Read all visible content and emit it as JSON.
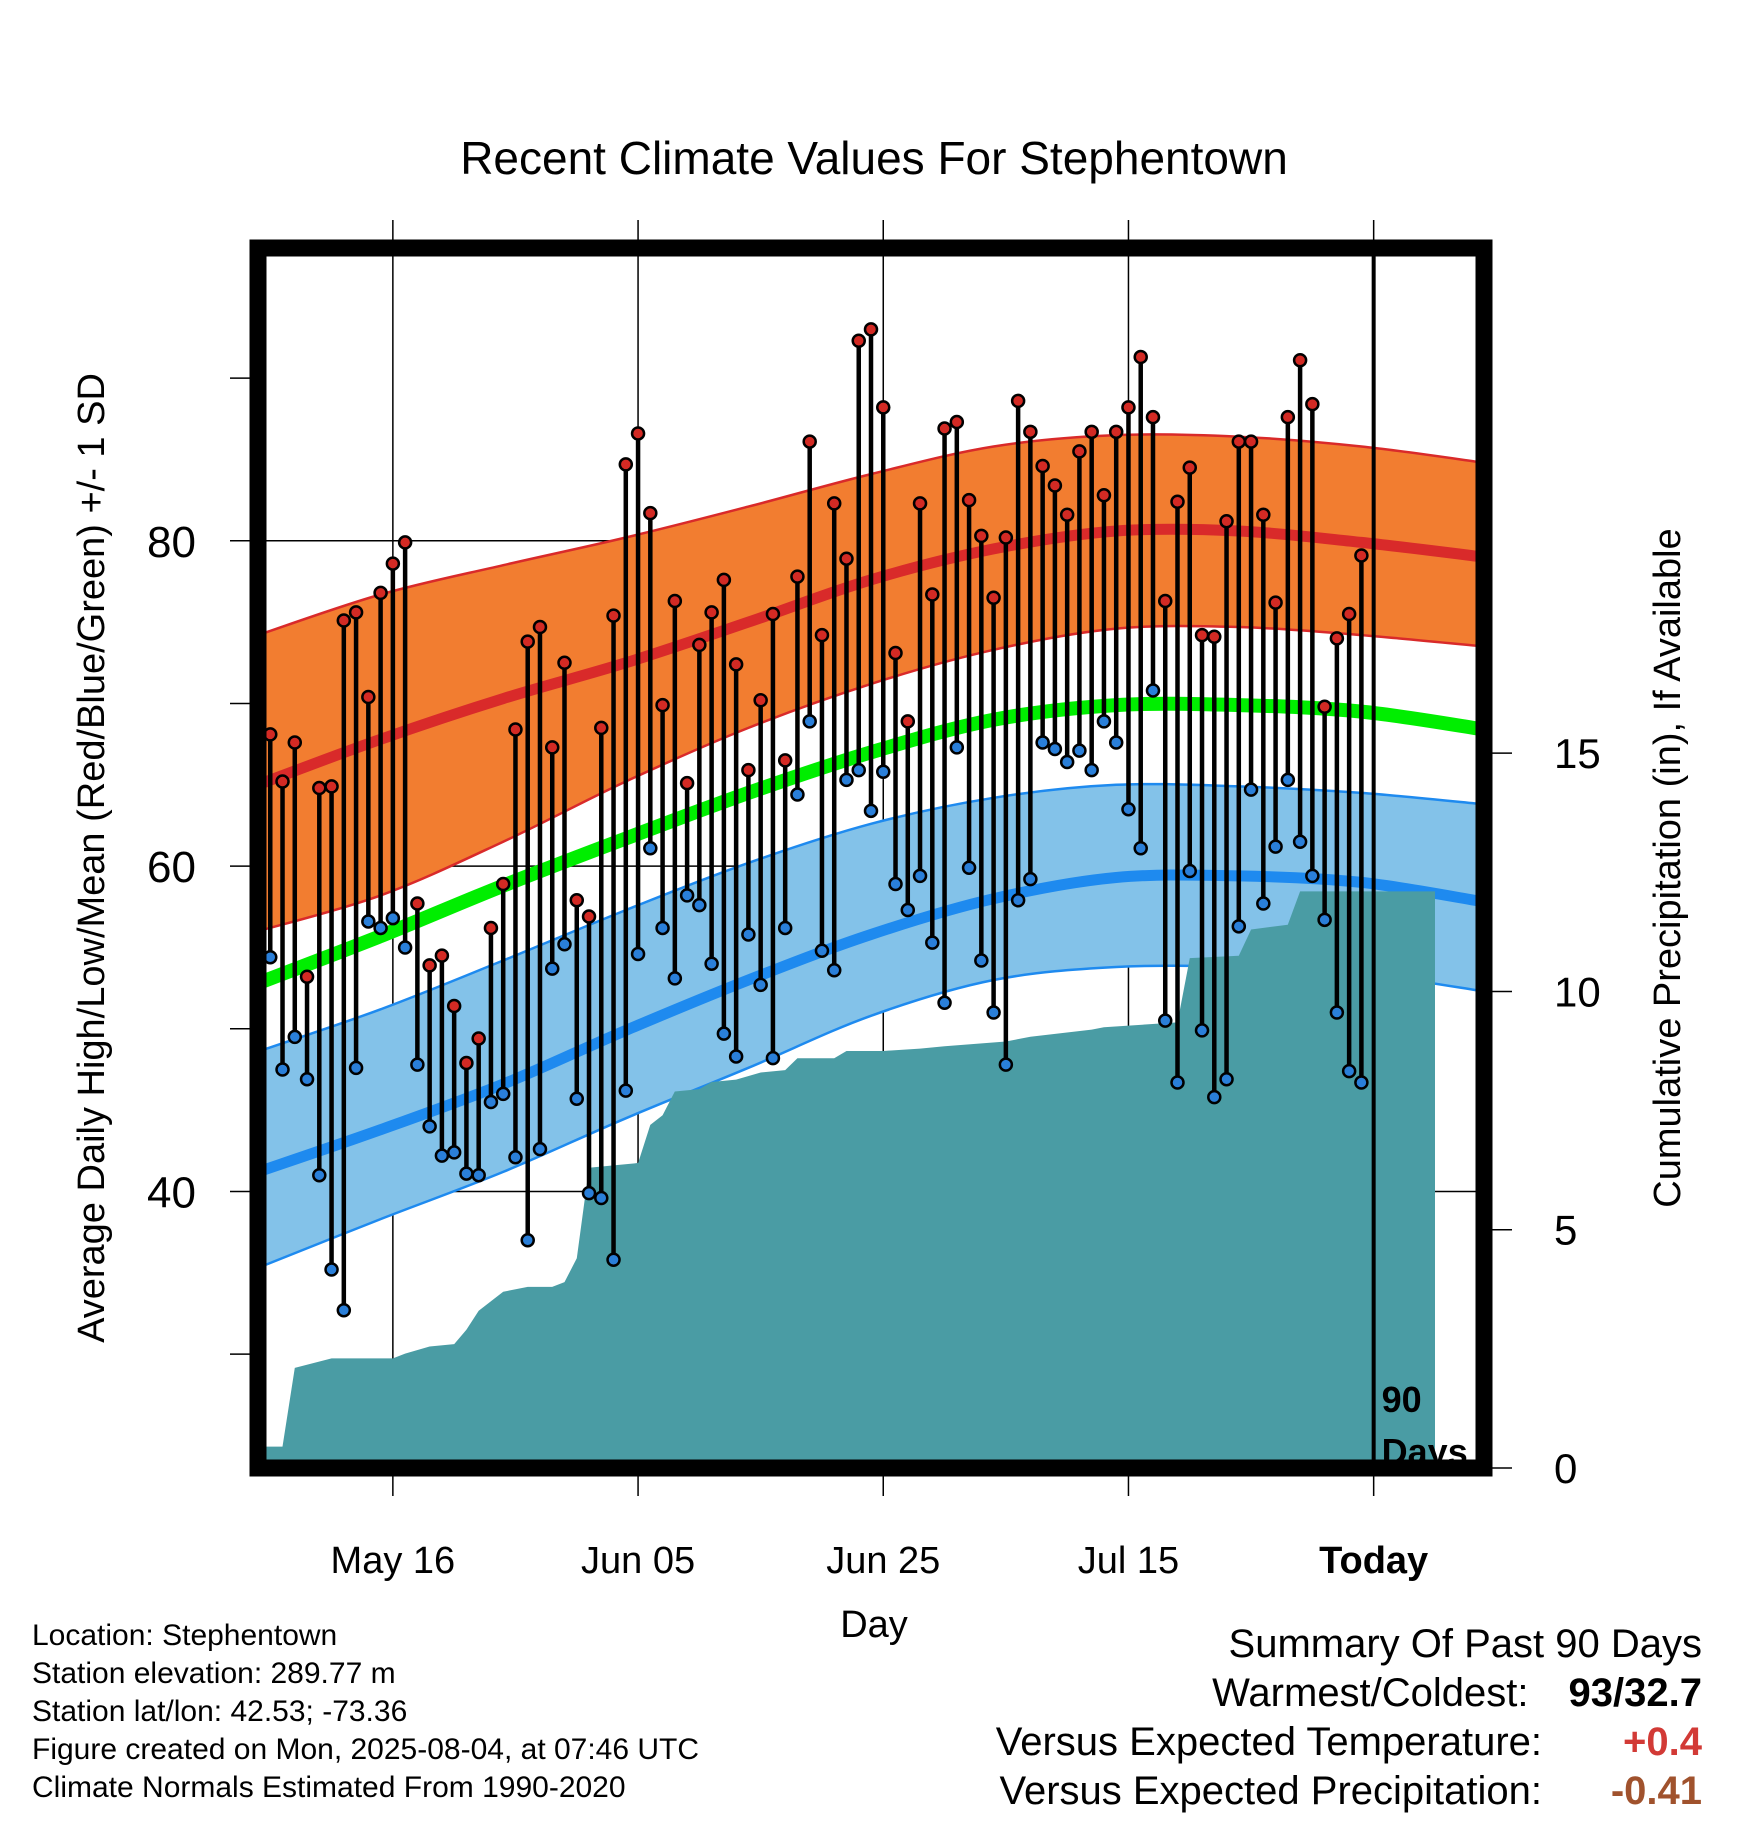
{
  "chart_data": {
    "type": "line",
    "title": "Recent Climate Values For Stephentown",
    "xlabel": "Day",
    "ylabel_left": "Average Daily High/Low/Mean (Red/Blue/Green) +/- 1 SD",
    "ylabel_right": "Cumulative Precipitation (in), If Available",
    "x_tick_labels": [
      "May 16",
      "Jun 05",
      "Jun 25",
      "Jul 15",
      "Today"
    ],
    "x_tick_days": [
      10,
      30,
      50,
      70,
      90
    ],
    "y_left_ticks": [
      40,
      60,
      80
    ],
    "y_left_minor_ticks": [
      30,
      50,
      70,
      90
    ],
    "y_left_range": [
      23,
      98
    ],
    "y_right_ticks": [
      0,
      5,
      10,
      15
    ],
    "y_right_range": [
      0,
      25.6
    ],
    "x_range": [
      -1,
      99
    ],
    "grid": true,
    "today_marker": "90\nDays",
    "normals": {
      "high_mean": [
        [
          -1,
          65.0
        ],
        [
          9,
          67.8
        ],
        [
          19,
          70.3
        ],
        [
          29,
          72.5
        ],
        [
          39,
          75.0
        ],
        [
          49,
          77.6
        ],
        [
          59,
          79.5
        ],
        [
          69,
          80.6
        ],
        [
          79,
          80.6
        ],
        [
          89,
          79.9
        ],
        [
          99,
          79.0
        ]
      ],
      "high_upper": [
        [
          -1,
          74.2
        ],
        [
          9,
          76.7
        ],
        [
          19,
          78.5
        ],
        [
          29,
          80.2
        ],
        [
          39,
          82.1
        ],
        [
          49,
          84.1
        ],
        [
          59,
          85.8
        ],
        [
          69,
          86.5
        ],
        [
          79,
          86.4
        ],
        [
          89,
          85.8
        ],
        [
          99,
          84.8
        ]
      ],
      "high_lower": [
        [
          -1,
          56.0
        ],
        [
          9,
          58.2
        ],
        [
          19,
          61.5
        ],
        [
          29,
          65.2
        ],
        [
          39,
          68.5
        ],
        [
          49,
          71.2
        ],
        [
          59,
          73.3
        ],
        [
          69,
          74.6
        ],
        [
          79,
          74.7
        ],
        [
          89,
          74.2
        ],
        [
          99,
          73.5
        ]
      ],
      "mean": [
        [
          -1,
          52.8
        ],
        [
          9,
          55.7
        ],
        [
          19,
          58.8
        ],
        [
          29,
          61.7
        ],
        [
          39,
          64.5
        ],
        [
          49,
          67.0
        ],
        [
          59,
          69.0
        ],
        [
          69,
          69.9
        ],
        [
          79,
          69.9
        ],
        [
          89,
          69.5
        ],
        [
          99,
          68.4
        ]
      ],
      "low_mean": [
        [
          -1,
          41.2
        ],
        [
          9,
          43.8
        ],
        [
          19,
          46.6
        ],
        [
          29,
          49.9
        ],
        [
          39,
          53.0
        ],
        [
          49,
          55.8
        ],
        [
          59,
          58.0
        ],
        [
          69,
          59.3
        ],
        [
          79,
          59.4
        ],
        [
          89,
          59.0
        ],
        [
          99,
          57.8
        ]
      ],
      "low_upper": [
        [
          -1,
          48.6
        ],
        [
          9,
          51.2
        ],
        [
          19,
          54.2
        ],
        [
          29,
          57.3
        ],
        [
          39,
          60.2
        ],
        [
          49,
          62.6
        ],
        [
          59,
          64.2
        ],
        [
          69,
          65.0
        ],
        [
          79,
          64.9
        ],
        [
          89,
          64.5
        ],
        [
          99,
          63.8
        ]
      ],
      "low_lower": [
        [
          -1,
          35.3
        ],
        [
          9,
          38.3
        ],
        [
          19,
          41.2
        ],
        [
          29,
          44.5
        ],
        [
          39,
          47.6
        ],
        [
          49,
          50.8
        ],
        [
          59,
          53.0
        ],
        [
          69,
          53.8
        ],
        [
          79,
          53.8
        ],
        [
          89,
          53.4
        ],
        [
          99,
          52.3
        ]
      ]
    },
    "daily": [
      [
        68.1,
        54.4
      ],
      [
        65.2,
        47.5
      ],
      [
        67.6,
        49.5
      ],
      [
        53.2,
        46.9
      ],
      [
        64.8,
        41.0
      ],
      [
        64.9,
        35.2
      ],
      [
        75.1,
        32.7
      ],
      [
        75.6,
        47.6
      ],
      [
        70.4,
        56.6
      ],
      [
        76.8,
        56.2
      ],
      [
        78.6,
        56.8
      ],
      [
        79.9,
        55.0
      ],
      [
        57.7,
        47.8
      ],
      [
        53.9,
        44.0
      ],
      [
        54.5,
        42.2
      ],
      [
        51.4,
        42.4
      ],
      [
        47.9,
        41.1
      ],
      [
        49.4,
        41.0
      ],
      [
        56.2,
        45.5
      ],
      [
        58.9,
        46.0
      ],
      [
        68.4,
        42.1
      ],
      [
        73.8,
        37.0
      ],
      [
        74.7,
        42.6
      ],
      [
        67.3,
        53.7
      ],
      [
        72.5,
        55.2
      ],
      [
        57.9,
        45.7
      ],
      [
        56.9,
        39.9
      ],
      [
        68.5,
        39.6
      ],
      [
        75.4,
        35.8
      ],
      [
        84.7,
        46.2
      ],
      [
        86.6,
        54.6
      ],
      [
        81.7,
        61.1
      ],
      [
        69.9,
        56.2
      ],
      [
        76.3,
        53.1
      ],
      [
        65.1,
        58.2
      ],
      [
        73.6,
        57.6
      ],
      [
        75.6,
        54.0
      ],
      [
        77.6,
        49.7
      ],
      [
        72.4,
        48.3
      ],
      [
        65.9,
        55.8
      ],
      [
        70.2,
        52.7
      ],
      [
        75.5,
        48.2
      ],
      [
        66.5,
        56.2
      ],
      [
        77.8,
        64.4
      ],
      [
        86.1,
        68.9
      ],
      [
        74.2,
        54.8
      ],
      [
        82.3,
        53.6
      ],
      [
        78.9,
        65.3
      ],
      [
        92.3,
        65.9
      ],
      [
        93.0,
        63.4
      ],
      [
        88.2,
        65.8
      ],
      [
        73.1,
        58.9
      ],
      [
        68.9,
        57.3
      ],
      [
        82.3,
        59.4
      ],
      [
        76.7,
        55.3
      ],
      [
        86.9,
        51.6
      ],
      [
        87.3,
        67.3
      ],
      [
        82.5,
        59.9
      ],
      [
        80.3,
        54.2
      ],
      [
        76.5,
        51.0
      ],
      [
        80.2,
        47.8
      ],
      [
        88.6,
        57.9
      ],
      [
        86.7,
        59.2
      ],
      [
        84.6,
        67.6
      ],
      [
        83.4,
        67.2
      ],
      [
        81.6,
        66.4
      ],
      [
        85.5,
        67.1
      ],
      [
        86.7,
        65.9
      ],
      [
        82.8,
        68.9
      ],
      [
        86.7,
        67.6
      ],
      [
        88.2,
        63.5
      ],
      [
        91.3,
        61.1
      ],
      [
        87.6,
        70.8
      ],
      [
        76.3,
        50.5
      ],
      [
        82.4,
        46.7
      ],
      [
        84.5,
        59.7
      ],
      [
        74.2,
        49.9
      ],
      [
        74.1,
        45.8
      ],
      [
        81.2,
        46.9
      ],
      [
        86.1,
        56.3
      ],
      [
        86.1,
        64.7
      ],
      [
        81.6,
        57.7
      ],
      [
        76.2,
        61.2
      ],
      [
        87.6,
        65.3
      ],
      [
        91.1,
        61.5
      ],
      [
        88.4,
        59.4
      ],
      [
        69.8,
        56.7
      ],
      [
        74.0,
        51.0
      ],
      [
        75.5,
        47.4
      ],
      [
        79.1,
        46.7
      ]
    ],
    "precip_cumulative": [
      [
        -1,
        0.45
      ],
      [
        1,
        0.45
      ],
      [
        2,
        2.1
      ],
      [
        5,
        2.3
      ],
      [
        10,
        2.3
      ],
      [
        11,
        2.4
      ],
      [
        13,
        2.55
      ],
      [
        15,
        2.6
      ],
      [
        16,
        2.9
      ],
      [
        17,
        3.3
      ],
      [
        19,
        3.7
      ],
      [
        21,
        3.8
      ],
      [
        23,
        3.8
      ],
      [
        24,
        3.9
      ],
      [
        25,
        4.4
      ],
      [
        26,
        6.3
      ],
      [
        28,
        6.35
      ],
      [
        30,
        6.4
      ],
      [
        31,
        7.2
      ],
      [
        32,
        7.4
      ],
      [
        33,
        7.9
      ],
      [
        35,
        7.95
      ],
      [
        36,
        8.1
      ],
      [
        38,
        8.15
      ],
      [
        40,
        8.3
      ],
      [
        42,
        8.35
      ],
      [
        43,
        8.6
      ],
      [
        46,
        8.6
      ],
      [
        47,
        8.75
      ],
      [
        50,
        8.75
      ],
      [
        53,
        8.8
      ],
      [
        55,
        8.85
      ],
      [
        60,
        8.95
      ],
      [
        62,
        9.05
      ],
      [
        67,
        9.2
      ],
      [
        68,
        9.25
      ],
      [
        74,
        9.35
      ],
      [
        75,
        10.7
      ],
      [
        79,
        10.75
      ],
      [
        80,
        11.3
      ],
      [
        83,
        11.4
      ],
      [
        84,
        12.1
      ],
      [
        94,
        12.1
      ],
      [
        95,
        12.1
      ]
    ]
  },
  "info": {
    "location": "Location: Stephentown",
    "elevation": "Station elevation: 289.77 m",
    "latlon": "Station lat/lon: 42.53; -73.36",
    "created": "Figure created on Mon, 2025-08-04, at 07:46 UTC",
    "normals": "Climate Normals Estimated From 1990-2020"
  },
  "summary": {
    "title": "Summary Of Past 90 Days",
    "warm_label": "Warmest/Coldest:",
    "warm_value": "93/32.7",
    "temp_label": "Versus Expected Temperature:",
    "temp_value": "+0.4",
    "prec_label": "Versus Expected Precipitation:",
    "prec_value": "-0.41"
  },
  "colors": {
    "high_band": "#f27d30",
    "high_line": "#d92a2a",
    "high_dot": "#d32a24",
    "mean_line": "#00ee00",
    "low_band": "#83c2e9",
    "low_line": "#1e8aef",
    "low_dot": "#2a7fd9",
    "precip": "#4a9ca4"
  }
}
